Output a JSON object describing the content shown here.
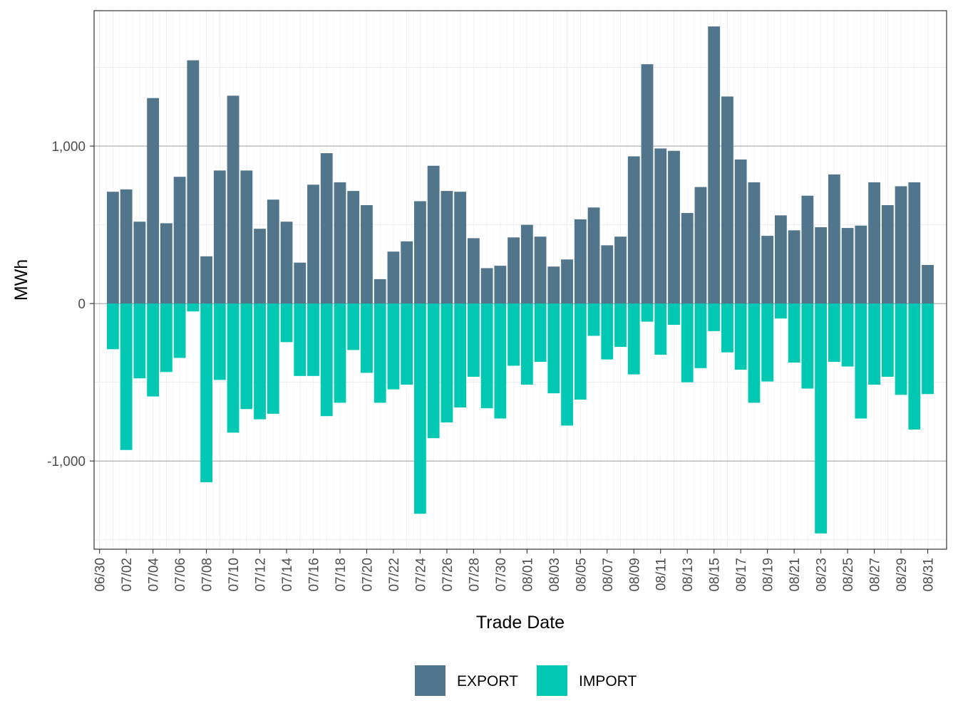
{
  "chart_data": {
    "type": "bar",
    "stacked": "diverging",
    "xlabel": "Trade Date",
    "ylabel": "MWh",
    "ylim": [
      -1560,
      1860
    ],
    "yticks": [
      -1000,
      0,
      1000
    ],
    "ytick_labels": [
      "-1,000",
      "0",
      "1,000"
    ],
    "grid": true,
    "legend_position": "bottom",
    "dates": [
      "07/01",
      "07/02",
      "07/03",
      "07/04",
      "07/05",
      "07/06",
      "07/07",
      "07/08",
      "07/09",
      "07/10",
      "07/11",
      "07/12",
      "07/13",
      "07/14",
      "07/15",
      "07/16",
      "07/17",
      "07/18",
      "07/19",
      "07/20",
      "07/21",
      "07/22",
      "07/23",
      "07/24",
      "07/25",
      "07/26",
      "07/27",
      "07/28",
      "07/29",
      "07/30",
      "07/31",
      "08/01",
      "08/02",
      "08/03",
      "08/04",
      "08/05",
      "08/06",
      "08/07",
      "08/08",
      "08/09",
      "08/10",
      "08/11",
      "08/12",
      "08/13",
      "08/14",
      "08/15",
      "08/16",
      "08/17",
      "08/18",
      "08/19",
      "08/20",
      "08/21",
      "08/22",
      "08/23",
      "08/24",
      "08/25",
      "08/26",
      "08/27",
      "08/28",
      "08/29",
      "08/30",
      "08/31"
    ],
    "x_tick_labels": [
      "06/30",
      "07/02",
      "07/04",
      "07/06",
      "07/08",
      "07/10",
      "07/12",
      "07/14",
      "07/16",
      "07/18",
      "07/20",
      "07/22",
      "07/24",
      "07/26",
      "07/28",
      "07/30",
      "08/01",
      "08/03",
      "08/05",
      "08/07",
      "08/09",
      "08/11",
      "08/13",
      "08/15",
      "08/17",
      "08/19",
      "08/21",
      "08/23",
      "08/25",
      "08/27",
      "08/29",
      "08/31"
    ],
    "series": [
      {
        "name": "EXPORT",
        "color": "#51758a",
        "values": [
          710,
          725,
          520,
          1305,
          510,
          805,
          1545,
          300,
          845,
          1320,
          845,
          475,
          660,
          520,
          260,
          755,
          955,
          770,
          715,
          625,
          155,
          330,
          395,
          650,
          875,
          715,
          710,
          415,
          225,
          240,
          420,
          500,
          425,
          235,
          280,
          535,
          610,
          370,
          425,
          935,
          1520,
          985,
          970,
          575,
          740,
          1760,
          1315,
          915,
          770,
          430,
          560,
          465,
          685,
          485,
          820,
          480,
          495,
          770,
          625,
          745,
          770,
          245
        ]
      },
      {
        "name": "IMPORT",
        "color": "#00c8b3",
        "values": [
          -290,
          -930,
          -475,
          -590,
          -435,
          -345,
          -50,
          -1135,
          -485,
          -820,
          -670,
          -735,
          -700,
          -245,
          -460,
          -460,
          -715,
          -630,
          -295,
          -440,
          -630,
          -545,
          -515,
          -1335,
          -855,
          -755,
          -660,
          -465,
          -665,
          -730,
          -395,
          -515,
          -370,
          -570,
          -775,
          -610,
          -205,
          -355,
          -275,
          -450,
          -115,
          -325,
          -135,
          -500,
          -410,
          -175,
          -310,
          -420,
          -630,
          -495,
          -95,
          -375,
          -540,
          -1460,
          -370,
          -400,
          -730,
          -515,
          -465,
          -580,
          -800,
          -575
        ]
      }
    ]
  }
}
